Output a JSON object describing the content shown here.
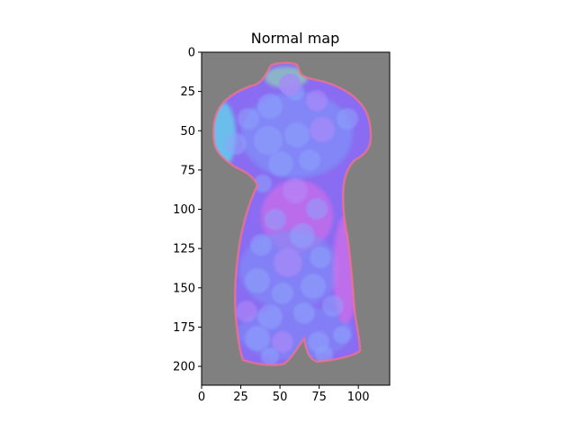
{
  "chart_data": {
    "type": "heatmap",
    "title": "Normal map",
    "xlabel": "",
    "ylabel": "",
    "xlim": [
      0,
      120
    ],
    "ylim": [
      212,
      0
    ],
    "x_ticks": [
      0,
      25,
      50,
      75,
      100
    ],
    "y_ticks": [
      0,
      25,
      50,
      75,
      100,
      125,
      150,
      175,
      200
    ],
    "x_tick_labels": [
      "0",
      "25",
      "50",
      "75",
      "100"
    ],
    "y_tick_labels": [
      "0",
      "25",
      "50",
      "75",
      "100",
      "125",
      "150",
      "175",
      "200"
    ],
    "image_content": "normal map of a female torso sculpture",
    "background_color": "#808080",
    "colors": {
      "body_base": "#8a6cf2",
      "body_blue": "#7f8ff8",
      "body_pink": "#e26ee6",
      "edge_green": "#8ef0a6",
      "edge_cyan": "#5fe0ea",
      "edge_red": "#ff6f8a"
    }
  }
}
